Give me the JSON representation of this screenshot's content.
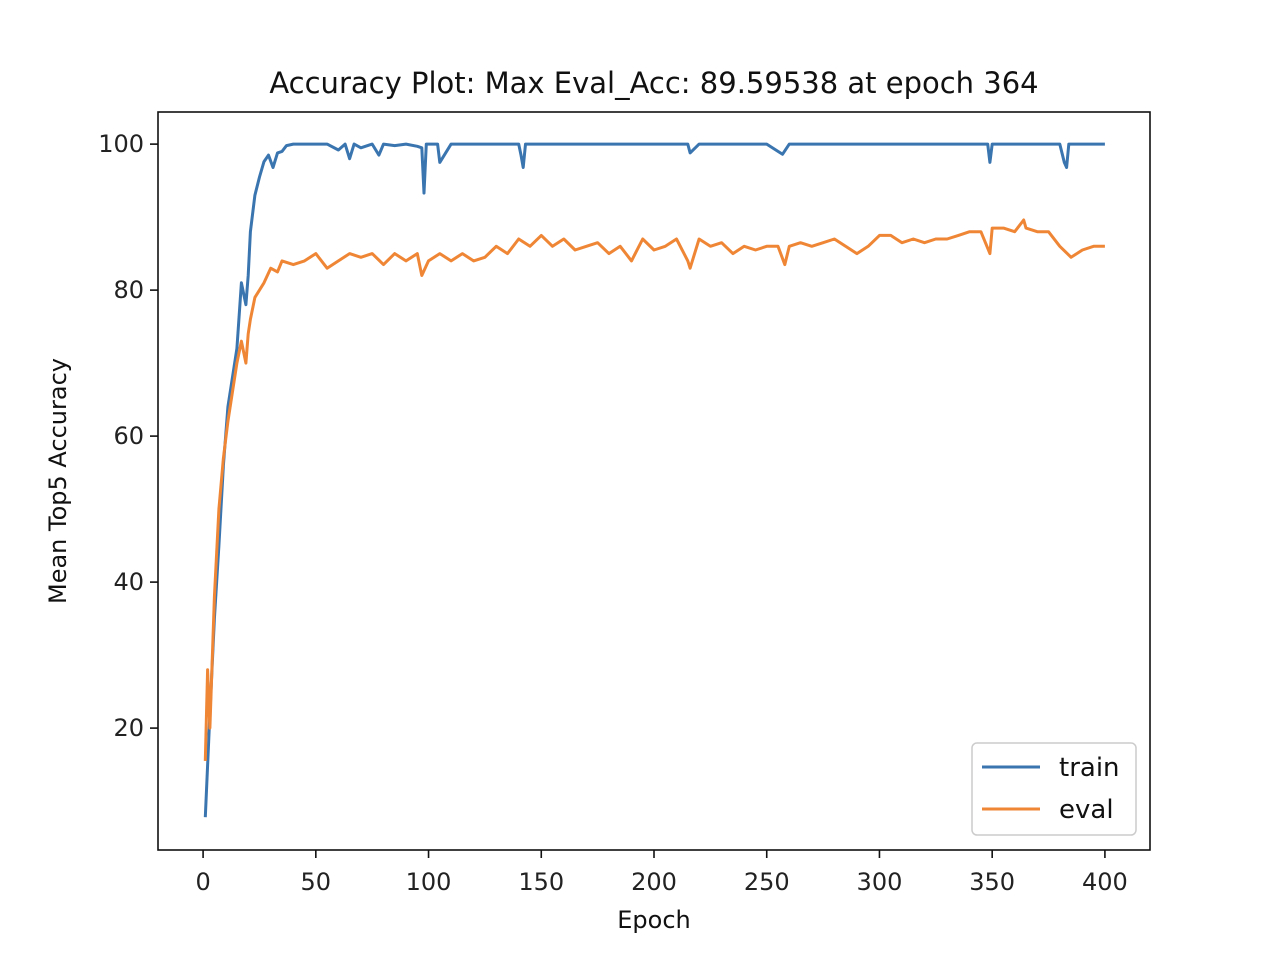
{
  "chart_data": {
    "type": "line",
    "title": "Accuracy Plot: Max Eval_Acc: 89.59538 at epoch 364",
    "xlabel": "Epoch",
    "ylabel": "Mean Top5 Accuracy",
    "xlim": [
      -20,
      420
    ],
    "ylim": [
      3.3,
      104.4
    ],
    "xticks": [
      0,
      50,
      100,
      150,
      200,
      250,
      300,
      350,
      400
    ],
    "yticks": [
      20,
      40,
      60,
      80,
      100
    ],
    "grid": false,
    "legend_position": "lower-right",
    "series": [
      {
        "name": "train",
        "color": "#3a75b0",
        "x": [
          1,
          3,
          5,
          7,
          9,
          11,
          13,
          15,
          17,
          19,
          20,
          21,
          23,
          25,
          27,
          29,
          31,
          33,
          35,
          37,
          40,
          45,
          50,
          55,
          60,
          63,
          65,
          67,
          70,
          75,
          78,
          80,
          85,
          90,
          95,
          97,
          98,
          99,
          100,
          104,
          105,
          110,
          120,
          130,
          140,
          141,
          142,
          143,
          150,
          160,
          170,
          180,
          190,
          200,
          210,
          215,
          216,
          220,
          225,
          230,
          240,
          250,
          255,
          257,
          260,
          270,
          280,
          290,
          300,
          310,
          320,
          330,
          340,
          348,
          349,
          350,
          360,
          370,
          380,
          382,
          383,
          384,
          390,
          400
        ],
        "y": [
          7.8,
          22,
          35,
          45,
          56,
          64,
          68,
          72,
          81,
          78,
          82,
          88,
          93,
          95.5,
          97.6,
          98.5,
          96.8,
          98.8,
          99,
          99.8,
          100,
          100,
          100,
          100,
          99.2,
          100,
          98,
          100,
          99.5,
          100,
          98.5,
          100,
          99.8,
          100,
          99.7,
          99.5,
          93.3,
          100,
          100,
          100,
          97.5,
          100,
          100,
          100,
          100,
          98.5,
          96.8,
          100,
          100,
          100,
          100,
          100,
          100,
          100,
          100,
          100,
          98.8,
          100,
          100,
          100,
          100,
          100,
          99,
          98.6,
          100,
          100,
          100,
          100,
          100,
          100,
          100,
          100,
          100,
          100,
          97.5,
          100,
          100,
          100,
          100,
          97.5,
          96.8,
          100,
          100,
          100
        ]
      },
      {
        "name": "eval",
        "color": "#ef8636",
        "x": [
          1,
          2,
          3,
          5,
          7,
          9,
          11,
          13,
          15,
          17,
          19,
          20,
          21,
          23,
          25,
          27,
          30,
          33,
          35,
          40,
          45,
          50,
          55,
          60,
          65,
          70,
          75,
          80,
          85,
          90,
          95,
          97,
          100,
          105,
          110,
          115,
          120,
          125,
          130,
          135,
          140,
          145,
          150,
          155,
          160,
          165,
          170,
          175,
          180,
          185,
          190,
          195,
          200,
          205,
          210,
          215,
          216,
          220,
          225,
          230,
          235,
          240,
          245,
          250,
          255,
          258,
          260,
          265,
          270,
          275,
          280,
          285,
          290,
          295,
          300,
          305,
          310,
          315,
          320,
          325,
          330,
          335,
          340,
          345,
          349,
          350,
          355,
          360,
          364,
          365,
          370,
          375,
          380,
          385,
          390,
          395,
          400
        ],
        "y": [
          15.5,
          28,
          20,
          38,
          50,
          57,
          62,
          66,
          70,
          73,
          70,
          74,
          76,
          79,
          80,
          81,
          83,
          82.5,
          84,
          83.5,
          84,
          85,
          83,
          84,
          85,
          84.5,
          85,
          83.5,
          85,
          84,
          85,
          82,
          84,
          85,
          84,
          85,
          84,
          84.5,
          86,
          85,
          87,
          86,
          87.5,
          86,
          87,
          85.5,
          86,
          86.5,
          85,
          86,
          84,
          87,
          85.5,
          86,
          87,
          84,
          83,
          87,
          86,
          86.5,
          85,
          86,
          85.5,
          86,
          86,
          83.5,
          86,
          86.5,
          86,
          86.5,
          87,
          86,
          85,
          86,
          87.5,
          87.5,
          86.5,
          87,
          86.5,
          87,
          87,
          87.5,
          88,
          88,
          85,
          88.5,
          88.5,
          88,
          89.6,
          88.5,
          88,
          88,
          86,
          84.5,
          85.5,
          86,
          86
        ]
      }
    ]
  }
}
